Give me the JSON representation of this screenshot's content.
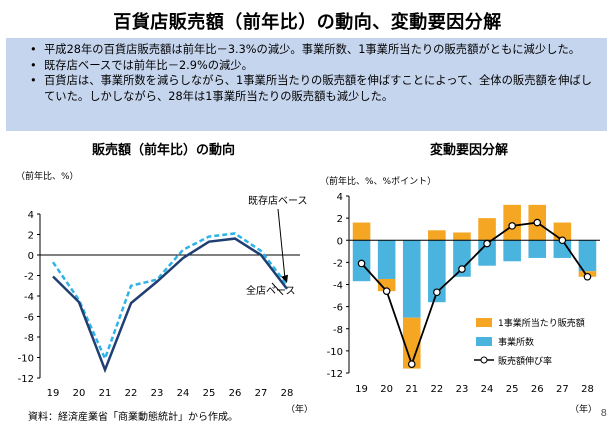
{
  "title": "百貨店販売額（前年比）の動向、変動要因分解",
  "bullets": [
    "平成28年の百貨店販売額は前年比－3.3%の減少。事業所数、1事業所当たりの販売額がともに減少した。",
    "既存店ベースでは前年比－2.9%の減少。",
    "百貨店は、事業所数を減らしながら、1事業所当たりの販売額を伸ばすことによって、全体の販売額を伸ばしていた。しかしながら、28年は1事業所当たりの販売額も減少した。"
  ],
  "source": "資料：経済産業省「商業動態統計」から作成。",
  "page_number": "8",
  "colors": {
    "box_bg": "#c6d5ee",
    "all_store": "#1f3e72",
    "existing_store": "#2eb3e6",
    "per_establishment": "#f5a623",
    "establishments": "#4ab3de",
    "sales_growth": "#000000"
  },
  "chart_data": [
    {
      "type": "line",
      "title": "販売額（前年比）の動向",
      "ylabel": "（前年比、%）",
      "xlabel": "（年）",
      "categories": [
        "19",
        "20",
        "21",
        "22",
        "23",
        "24",
        "25",
        "26",
        "27",
        "28"
      ],
      "ylim": [
        -12,
        4
      ],
      "yticks": [
        4,
        2,
        0,
        -2,
        -4,
        -6,
        -8,
        -10,
        -12
      ],
      "series": [
        {
          "name": "全店ベース",
          "style": "solid",
          "values": [
            -2.1,
            -4.6,
            -11.2,
            -4.7,
            -2.6,
            -0.3,
            1.3,
            1.6,
            0.0,
            -3.3
          ]
        },
        {
          "name": "既存店ベース",
          "style": "dashed",
          "values": [
            -0.7,
            -4.4,
            -10.1,
            -3.0,
            -2.4,
            0.5,
            1.8,
            2.1,
            0.4,
            -2.9
          ]
        }
      ],
      "annotations": [
        "既存店ベース",
        "全店ベース"
      ]
    },
    {
      "type": "bar",
      "title": "変動要因分解",
      "ylabel": "（前年比、%、%ポイント）",
      "xlabel": "（年）",
      "categories": [
        "19",
        "20",
        "21",
        "22",
        "23",
        "24",
        "25",
        "26",
        "27",
        "28"
      ],
      "ylim": [
        -12,
        4
      ],
      "yticks": [
        4,
        2,
        0,
        -2,
        -4,
        -6,
        -8,
        -10,
        -12
      ],
      "stacked": true,
      "series": [
        {
          "name": "1事業所当たり販売額",
          "values": [
            1.6,
            -1.1,
            -4.6,
            0.9,
            0.7,
            2.0,
            3.2,
            3.2,
            1.6,
            -0.5
          ]
        },
        {
          "name": "事業所数",
          "values": [
            -3.7,
            -3.5,
            -7.0,
            -5.6,
            -3.3,
            -2.3,
            -1.9,
            -1.6,
            -1.6,
            -2.8
          ]
        },
        {
          "name": "販売額伸び率",
          "type": "line",
          "values": [
            -2.1,
            -4.6,
            -11.2,
            -4.7,
            -2.6,
            -0.3,
            1.3,
            1.6,
            0.0,
            -3.3
          ]
        }
      ],
      "legend": "bottom-right"
    }
  ]
}
